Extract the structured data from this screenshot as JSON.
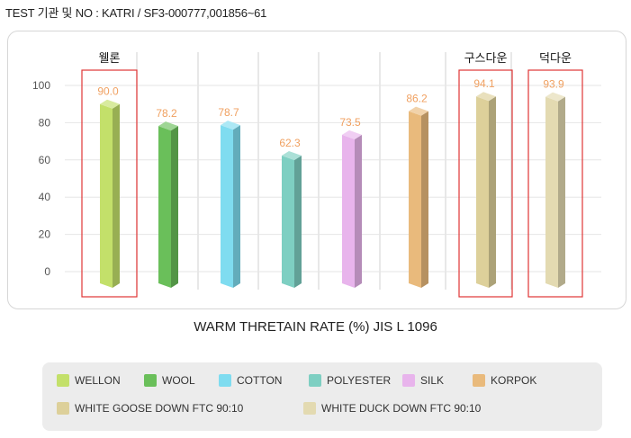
{
  "header": {
    "test_info": "TEST 기관 및 NO : KATRI / SF3-000777,001856~61"
  },
  "caption": "WARM THRETAIN RATE (%) JIS L 1096",
  "highlight_labels": [
    "웰론",
    "구스다운",
    "덕다운"
  ],
  "chart_data": {
    "type": "bar",
    "categories": [
      "WELLON",
      "WOOL",
      "COTTON",
      "POLYESTER",
      "SILK",
      "KORPOK",
      "WHITE GOOSE DOWN FTC 90:10",
      "WHITE DUCK DOWN FTC 90:10"
    ],
    "values": [
      90.0,
      78.2,
      78.7,
      62.3,
      73.5,
      86.2,
      94.1,
      93.9
    ],
    "data_labels": [
      "90.0",
      "78.2",
      "78.7",
      "62.3",
      "73.5",
      "86.2",
      "94.1",
      "93.9"
    ],
    "colors": [
      "#c3e06a",
      "#6abf5a",
      "#7fdcf0",
      "#7ecfc2",
      "#e8b4ec",
      "#e9ba7c",
      "#ddd09a",
      "#e3dab1"
    ],
    "highlighted": [
      0,
      6,
      7
    ],
    "yticks": [
      "100",
      "80",
      "60",
      "40",
      "20",
      "0"
    ],
    "ylim": [
      0,
      100
    ],
    "grid": true,
    "legend_position": "bottom"
  },
  "legend": {
    "items": [
      {
        "label": "WELLON",
        "color": "#c3e06a"
      },
      {
        "label": "WOOL",
        "color": "#6abf5a"
      },
      {
        "label": "COTTON",
        "color": "#7fdcf0"
      },
      {
        "label": "POLYESTER",
        "color": "#7ecfc2"
      },
      {
        "label": "SILK",
        "color": "#e8b4ec"
      },
      {
        "label": "KORPOK",
        "color": "#e9ba7c"
      },
      {
        "label": "WHITE GOOSE DOWN FTC 90:10",
        "color": "#ddd09a"
      },
      {
        "label": "WHITE DUCK DOWN FTC 90:10",
        "color": "#e3dab1"
      }
    ]
  }
}
